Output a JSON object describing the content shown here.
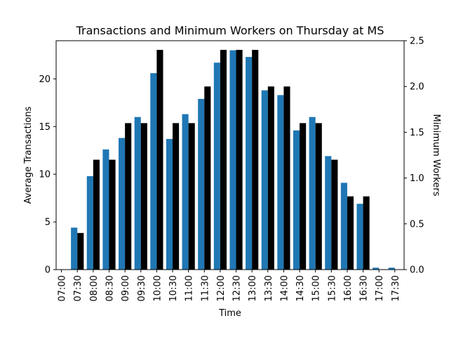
{
  "chart_data": {
    "type": "bar",
    "title": "Transactions and Minimum Workers on Thursday at MS",
    "xlabel": "Time",
    "ylabel_left": "Average Transactions",
    "ylabel_right": "Minimum Workers",
    "categories": [
      "07:00",
      "07:30",
      "08:00",
      "08:30",
      "09:00",
      "09:30",
      "10:00",
      "10:30",
      "11:00",
      "11:30",
      "12:00",
      "12:30",
      "13:00",
      "13:30",
      "14:00",
      "14:30",
      "15:00",
      "15:30",
      "16:00",
      "16:30",
      "17:00",
      "17:30"
    ],
    "left_axis": {
      "ylim": [
        0,
        24
      ],
      "ticks": [
        0,
        5,
        10,
        15,
        20
      ]
    },
    "right_axis": {
      "ylim": [
        0,
        2.5
      ],
      "ticks": [
        "0.0",
        "0.5",
        "1.0",
        "1.5",
        "2.0",
        "2.5"
      ]
    },
    "series": [
      {
        "axis": "left",
        "color": "#1f77b4",
        "values": [
          0,
          4.4,
          9.8,
          12.6,
          13.8,
          16.0,
          20.6,
          13.7,
          16.3,
          17.9,
          21.7,
          23.0,
          22.3,
          18.8,
          18.3,
          14.6,
          16.0,
          11.9,
          9.1,
          6.9,
          0.2,
          0.2
        ]
      },
      {
        "axis": "right",
        "color": "#000000",
        "values": [
          0,
          0.4,
          1.2,
          1.2,
          1.6,
          1.6,
          2.4,
          1.6,
          1.6,
          2.0,
          2.4,
          2.4,
          2.4,
          2.0,
          2.0,
          1.6,
          1.6,
          1.2,
          0.8,
          0.8,
          0,
          0
        ]
      }
    ],
    "grid": false,
    "legend": "none"
  }
}
